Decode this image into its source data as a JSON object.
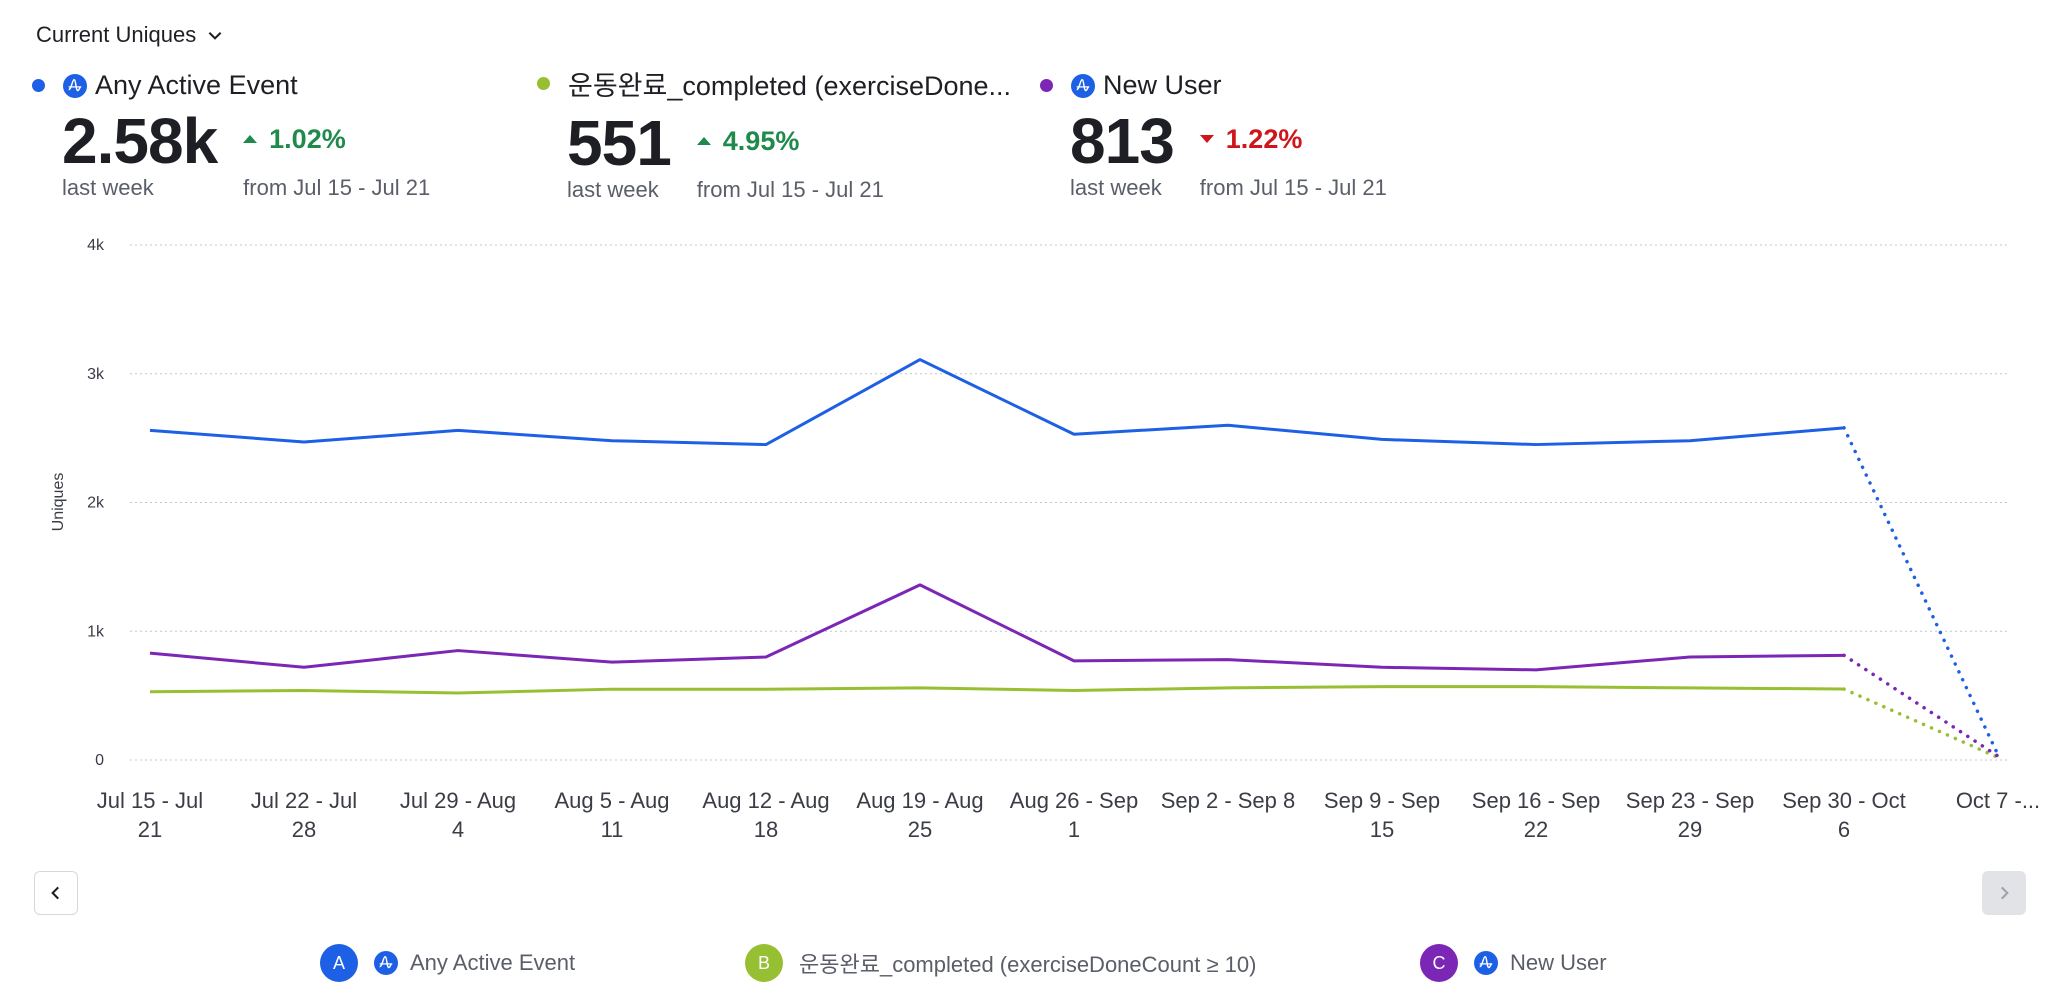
{
  "header": {
    "metric_selector": "Current Uniques"
  },
  "kpis": [
    {
      "id": "A",
      "name": "Any Active Event",
      "has_amp_icon": true,
      "color": "#1d60e5",
      "value": "2.58k",
      "value_label": "last week",
      "change": "1.02%",
      "direction": "up",
      "change_label": "from Jul 15 - Jul 21"
    },
    {
      "id": "B",
      "name": "운동완료_completed (exerciseDone...",
      "has_amp_icon": false,
      "color": "#97bf32",
      "value": "551",
      "value_label": "last week",
      "change": "4.95%",
      "direction": "up",
      "change_label": "from Jul 15 - Jul 21"
    },
    {
      "id": "C",
      "name": "New User",
      "has_amp_icon": true,
      "color": "#7b26b5",
      "value": "813",
      "value_label": "last week",
      "change": "1.22%",
      "direction": "down",
      "change_label": "from Jul 15 - Jul 21"
    }
  ],
  "colors": {
    "up": "#1f8a4c",
    "down": "#d0141b",
    "amp_icon": "#1d60e5",
    "grid": "#c4c7cc"
  },
  "pagination": {
    "prev_icon": "chevron-left-icon",
    "next_icon": "chevron-right-icon",
    "next_disabled": true
  },
  "legend": [
    {
      "badge": "A",
      "label": "Any Active Event",
      "has_amp_icon": true,
      "color": "#1d60e5"
    },
    {
      "badge": "B",
      "label": "운동완료_completed (exerciseDoneCount ≥ 10)",
      "has_amp_icon": false,
      "color": "#97bf32"
    },
    {
      "badge": "C",
      "label": "New User",
      "has_amp_icon": true,
      "color": "#7b26b5"
    }
  ],
  "chart_data": {
    "type": "line",
    "title": "",
    "xlabel": "",
    "ylabel": "Uniques",
    "ylim": [
      0,
      4000
    ],
    "yticks": [
      0,
      1000,
      2000,
      3000,
      4000
    ],
    "ytick_labels": [
      "0",
      "1k",
      "2k",
      "3k",
      "4k"
    ],
    "grid": true,
    "categories": [
      [
        "Jul 15 - Jul",
        "21"
      ],
      [
        "Jul 22 - Jul",
        "28"
      ],
      [
        "Jul 29 - Aug",
        "4"
      ],
      [
        "Aug 5 - Aug",
        "11"
      ],
      [
        "Aug 12 - Aug",
        "18"
      ],
      [
        "Aug 19 - Aug",
        "25"
      ],
      [
        "Aug 26 - Sep",
        "1"
      ],
      [
        "Sep 2 - Sep 8",
        ""
      ],
      [
        "Sep 9 - Sep",
        "15"
      ],
      [
        "Sep 16 - Sep",
        "22"
      ],
      [
        "Sep 23 - Sep",
        "29"
      ],
      [
        "Sep 30 - Oct",
        "6"
      ],
      [
        "Oct 7 -...",
        ""
      ]
    ],
    "incomplete_from_index": 11,
    "series": [
      {
        "name": "Any Active Event",
        "color": "#1d60e5",
        "values": [
          2560,
          2470,
          2560,
          2480,
          2450,
          3110,
          2530,
          2600,
          2490,
          2450,
          2480,
          2580,
          40
        ]
      },
      {
        "name": "운동완료_completed (exerciseDoneCount ≥ 10)",
        "color": "#97bf32",
        "values": [
          530,
          540,
          520,
          550,
          550,
          560,
          540,
          560,
          570,
          570,
          560,
          551,
          20
        ]
      },
      {
        "name": "New User",
        "color": "#7b26b5",
        "values": [
          830,
          720,
          850,
          760,
          800,
          1360,
          770,
          780,
          720,
          700,
          800,
          813,
          30
        ]
      }
    ]
  }
}
